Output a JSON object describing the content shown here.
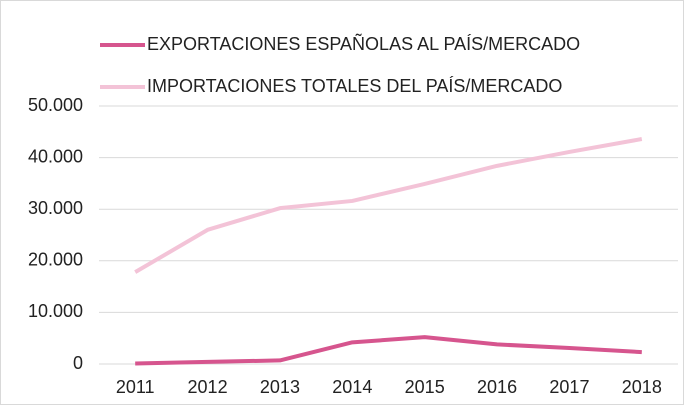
{
  "chart_data": {
    "type": "line",
    "categories": [
      "2011",
      "2012",
      "2013",
      "2014",
      "2015",
      "2016",
      "2017",
      "2018"
    ],
    "series": [
      {
        "name": "EXPORTACIONES ESPAÑOLAS AL PAÍS/MERCADO",
        "color": "#d6558e",
        "values": [
          100,
          400,
          700,
          4200,
          5200,
          3800,
          3100,
          2300
        ]
      },
      {
        "name": "IMPORTACIONES TOTALES DEL PAÍS/MERCADO",
        "color": "#f3c3d7",
        "values": [
          17800,
          26000,
          30200,
          31600,
          34900,
          38400,
          41100,
          43600
        ]
      }
    ],
    "ylim": [
      0,
      50000
    ],
    "yticks": [
      0,
      {
        "value": 10000,
        "label": "10.000"
      },
      {
        "value": 20000,
        "label": "20.000"
      },
      {
        "value": 30000,
        "label": "30.000"
      },
      {
        "value": 40000,
        "label": "40.000"
      },
      {
        "value": 50000,
        "label": "50.000"
      }
    ],
    "grid": true,
    "legend": "top"
  }
}
